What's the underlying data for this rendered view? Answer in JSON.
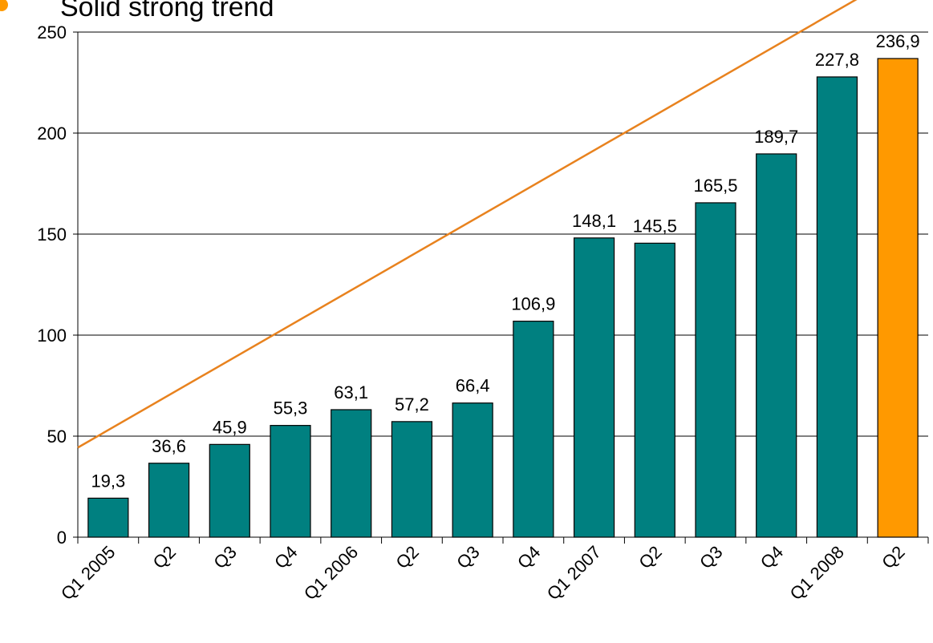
{
  "chart_data": {
    "type": "bar",
    "title": "Solid strong trend",
    "categories": [
      "Q1 2005",
      "Q2",
      "Q3",
      "Q4",
      "Q1 2006",
      "Q2",
      "Q3",
      "Q4",
      "Q1 2007",
      "Q2",
      "Q3",
      "Q4",
      "Q1 2008",
      "Q2"
    ],
    "values": [
      19.3,
      36.6,
      45.9,
      55.3,
      63.1,
      57.2,
      66.4,
      106.9,
      148.1,
      145.5,
      165.5,
      189.7,
      227.8,
      236.9
    ],
    "value_labels": [
      "19,3",
      "36,6",
      "45,9",
      "55,3",
      "63,1",
      "57,2",
      "66,4",
      "106,9",
      "148,1",
      "145,5",
      "165,5",
      "189,7",
      "227,8",
      "236,9"
    ],
    "colors": [
      "#008080",
      "#008080",
      "#008080",
      "#008080",
      "#008080",
      "#008080",
      "#008080",
      "#008080",
      "#008080",
      "#008080",
      "#008080",
      "#008080",
      "#008080",
      "#ff9900"
    ],
    "trend": {
      "color": "#e8821e",
      "values": [
        53,
        278
      ]
    },
    "ylim": [
      0,
      250
    ],
    "yticks": [
      0,
      50,
      100,
      150,
      200,
      250
    ],
    "grid": true
  }
}
